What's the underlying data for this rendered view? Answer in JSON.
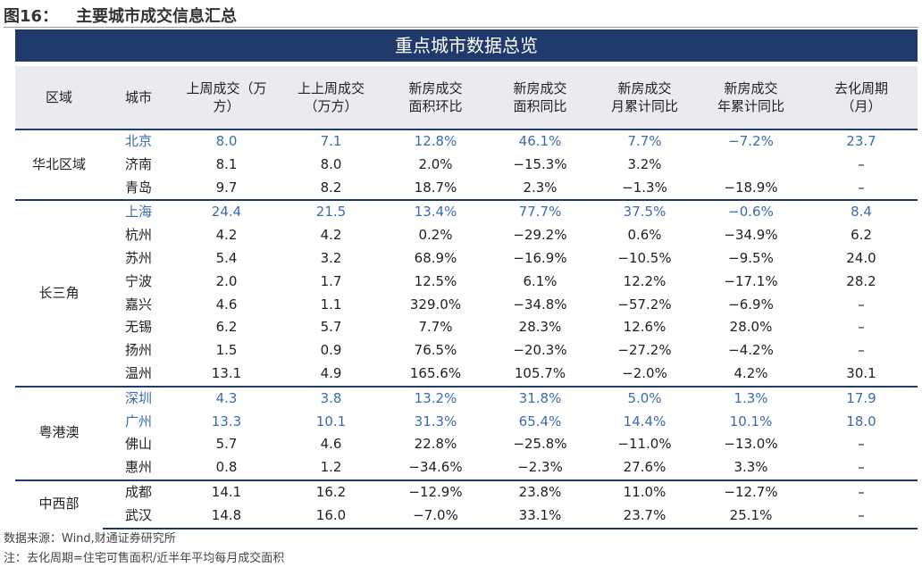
{
  "header": {
    "figure_label": "图16：",
    "title": "主要城市成交信息汇总"
  },
  "table": {
    "banner": "重点城市数据总览",
    "columns": [
      "区域",
      "城市",
      "上周成交（万\n方）",
      "上上周成交\n（万方）",
      "新房成交\n面积环比",
      "新房成交\n面积同比",
      "新房成交\n月累计同比",
      "新房成交\n年累计同比",
      "去化周期\n（月）"
    ],
    "groups": [
      {
        "region": "华北区域",
        "rows": [
          {
            "city": "北京",
            "highlight": true,
            "cells": [
              "8.0",
              "7.1",
              "12.8%",
              "46.1%",
              "7.7%",
              "−7.2%",
              "23.7"
            ]
          },
          {
            "city": "济南",
            "cells": [
              "8.1",
              "8.0",
              "2.0%",
              "−15.3%",
              "3.2%",
              null,
              "–"
            ]
          },
          {
            "city": "青岛",
            "cells": [
              "9.7",
              "8.2",
              "18.7%",
              "2.3%",
              "−1.3%",
              "−18.9%",
              "–"
            ]
          }
        ]
      },
      {
        "region": "长三角",
        "rows": [
          {
            "city": "上海",
            "highlight": true,
            "cells": [
              "24.4",
              "21.5",
              "13.4%",
              "77.7%",
              "37.5%",
              "−0.6%",
              "8.4"
            ]
          },
          {
            "city": "杭州",
            "cells": [
              "4.2",
              "4.2",
              "0.2%",
              "−29.2%",
              "0.6%",
              "−34.9%",
              "6.2"
            ]
          },
          {
            "city": "苏州",
            "cells": [
              "5.4",
              "3.2",
              "68.9%",
              "−16.9%",
              "−10.5%",
              "−9.5%",
              "24.0"
            ]
          },
          {
            "city": "宁波",
            "cells": [
              "2.0",
              "1.7",
              "12.5%",
              "6.1%",
              "12.2%",
              "−17.1%",
              "28.2"
            ]
          },
          {
            "city": "嘉兴",
            "cells": [
              "4.6",
              "1.1",
              "329.0%",
              "−34.8%",
              "−57.2%",
              "−6.9%",
              "–"
            ]
          },
          {
            "city": "无锡",
            "cells": [
              "6.2",
              "5.7",
              "7.7%",
              "28.3%",
              "12.6%",
              "28.0%",
              "–"
            ]
          },
          {
            "city": "扬州",
            "cells": [
              "1.5",
              "0.9",
              "76.5%",
              "−20.3%",
              "−27.2%",
              "−4.2%",
              "–"
            ]
          },
          {
            "city": "温州",
            "cells": [
              "13.1",
              "4.9",
              "165.6%",
              "105.7%",
              "−2.0%",
              "4.2%",
              "30.1"
            ]
          }
        ]
      },
      {
        "region": "粤港澳",
        "rows": [
          {
            "city": "深圳",
            "highlight": true,
            "cells": [
              "4.3",
              "3.8",
              "13.2%",
              "31.8%",
              "5.0%",
              "1.3%",
              "17.9"
            ]
          },
          {
            "city": "广州",
            "highlight": true,
            "cells": [
              "13.3",
              "10.1",
              "31.3%",
              "65.4%",
              "14.4%",
              "10.1%",
              "18.0"
            ]
          },
          {
            "city": "佛山",
            "cells": [
              "5.7",
              "4.6",
              "22.8%",
              "−25.8%",
              "−11.0%",
              "−13.0%",
              "–"
            ]
          },
          {
            "city": "惠州",
            "cells": [
              "0.8",
              "1.2",
              "−34.6%",
              "−2.3%",
              "27.6%",
              "3.3%",
              "–"
            ]
          }
        ]
      },
      {
        "region": "中西部",
        "rows": [
          {
            "city": "成都",
            "cells": [
              "14.1",
              "16.2",
              "−12.9%",
              "23.8%",
              "11.0%",
              "−12.7%",
              "–"
            ]
          },
          {
            "city": "武汉",
            "cells": [
              "14.8",
              "16.0",
              "−7.0%",
              "33.1%",
              "23.7%",
              "25.1%",
              "–"
            ]
          }
        ]
      }
    ]
  },
  "notes": [
    "数据来源：Wind,财通证券研究所",
    "注：去化周期=住宅可售面积/近半年平均每月成交面积"
  ]
}
